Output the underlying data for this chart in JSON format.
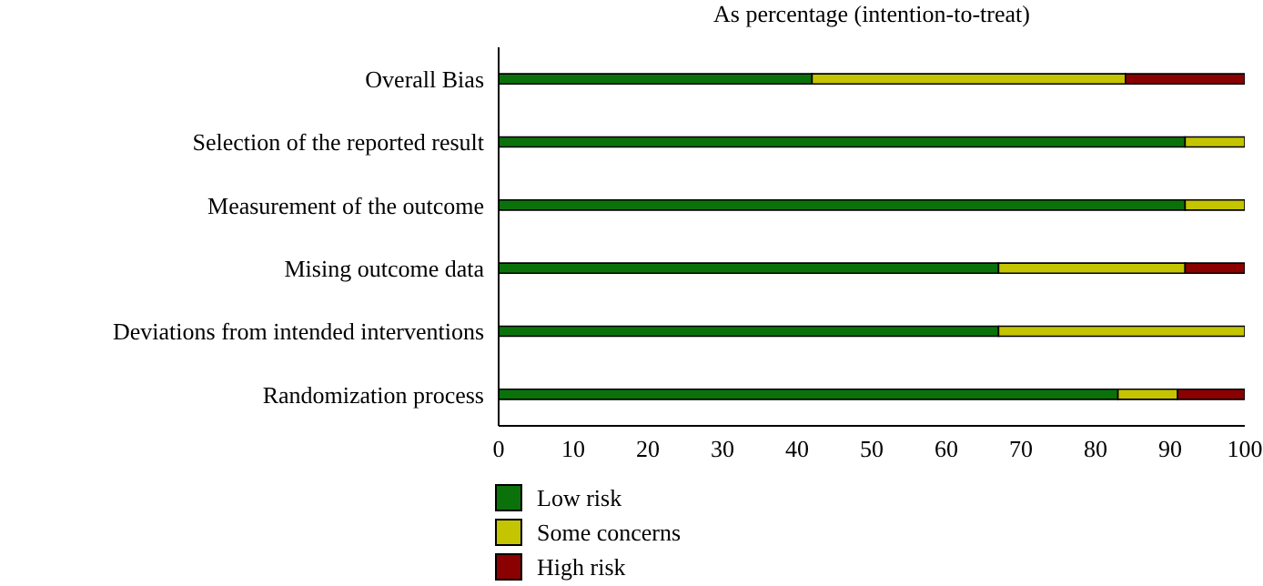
{
  "chart_data": {
    "type": "bar",
    "orientation": "horizontal",
    "stacked": true,
    "title": "As percentage (intention-to-treat)",
    "categories": [
      "Overall Bias",
      "Selection of the reported result",
      "Measurement of the outcome",
      "Mising outcome data",
      "Deviations from intended interventions",
      "Randomization process"
    ],
    "series": [
      {
        "name": "Low risk",
        "color": "#0b720b",
        "values": [
          42,
          92,
          92,
          67,
          67,
          83
        ]
      },
      {
        "name": "Some concerns",
        "color": "#c4c400",
        "values": [
          42,
          8,
          8,
          25,
          33,
          8
        ]
      },
      {
        "name": "High risk",
        "color": "#8b0000",
        "values": [
          16,
          0,
          0,
          8,
          0,
          9
        ]
      }
    ],
    "xlim": [
      0,
      100
    ],
    "xticks": [
      0,
      10,
      20,
      30,
      40,
      50,
      60,
      70,
      80,
      90,
      100
    ],
    "grid": false,
    "legend": "bottom left"
  }
}
